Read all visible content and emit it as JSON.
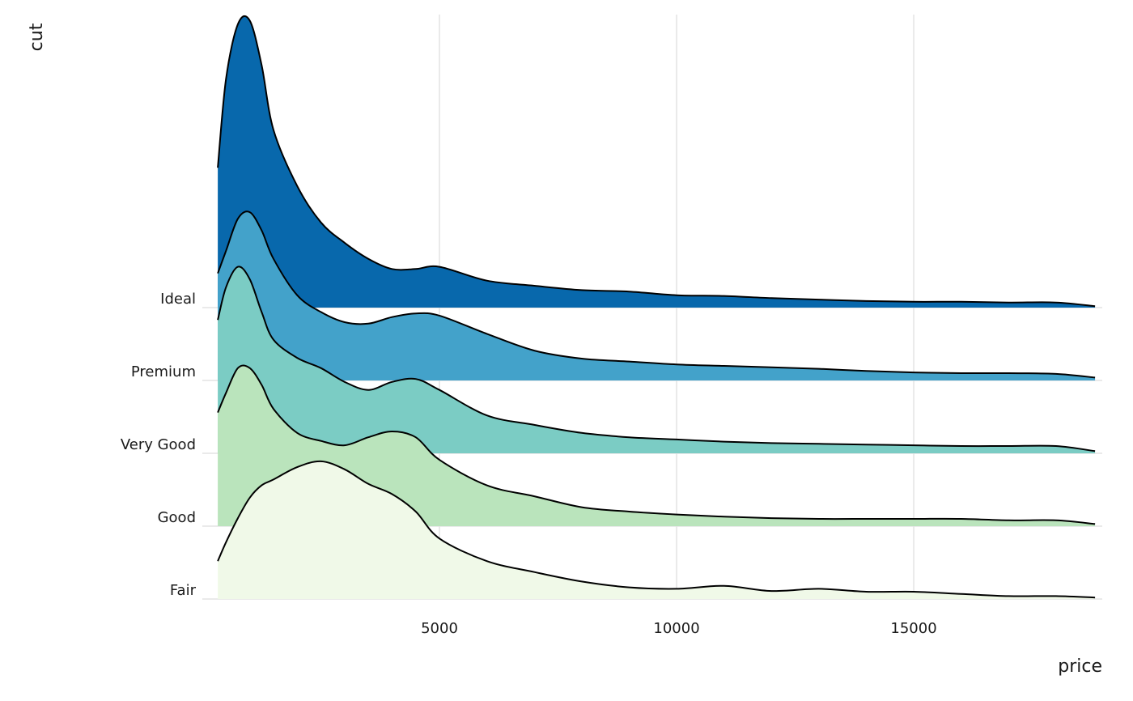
{
  "chart_data": {
    "type": "ridgeline",
    "x_label": "price",
    "y_label": "cut",
    "x": [
      326,
      500,
      750,
      1000,
      1250,
      1500,
      2000,
      2500,
      3000,
      3500,
      4000,
      4500,
      5000,
      6000,
      7000,
      8000,
      9000,
      10000,
      11000,
      12000,
      13000,
      14000,
      15000,
      16000,
      17000,
      18000,
      18823
    ],
    "series": [
      {
        "name": "Fair",
        "color": "#f0f9e8",
        "values": [
          0.52,
          0.78,
          1.11,
          1.39,
          1.56,
          1.64,
          1.81,
          1.89,
          1.78,
          1.58,
          1.44,
          1.2,
          0.83,
          0.52,
          0.37,
          0.24,
          0.16,
          0.14,
          0.18,
          0.11,
          0.14,
          0.1,
          0.1,
          0.07,
          0.04,
          0.04,
          0.02
        ]
      },
      {
        "name": "Good",
        "color": "#bae4bc",
        "values": [
          1.56,
          1.83,
          2.17,
          2.17,
          1.94,
          1.61,
          1.28,
          1.17,
          1.11,
          1.22,
          1.3,
          1.22,
          0.91,
          0.56,
          0.41,
          0.26,
          0.2,
          0.16,
          0.13,
          0.11,
          0.1,
          0.1,
          0.1,
          0.1,
          0.08,
          0.08,
          0.03
        ]
      },
      {
        "name": "Very Good",
        "color": "#7bccc4",
        "values": [
          1.83,
          2.28,
          2.56,
          2.39,
          1.94,
          1.56,
          1.31,
          1.17,
          0.98,
          0.87,
          0.98,
          1.02,
          0.87,
          0.52,
          0.39,
          0.28,
          0.22,
          0.19,
          0.16,
          0.14,
          0.13,
          0.12,
          0.11,
          0.1,
          0.1,
          0.1,
          0.03
        ]
      },
      {
        "name": "Premium",
        "color": "#43a2ca",
        "values": [
          1.47,
          1.78,
          2.22,
          2.31,
          2.06,
          1.67,
          1.17,
          0.94,
          0.8,
          0.78,
          0.87,
          0.92,
          0.89,
          0.64,
          0.41,
          0.3,
          0.26,
          0.22,
          0.2,
          0.18,
          0.16,
          0.13,
          0.11,
          0.1,
          0.1,
          0.09,
          0.04
        ]
      },
      {
        "name": "Ideal",
        "color": "#0868ac",
        "values": [
          1.92,
          3.14,
          3.89,
          3.94,
          3.33,
          2.44,
          1.67,
          1.17,
          0.89,
          0.67,
          0.53,
          0.53,
          0.56,
          0.37,
          0.3,
          0.24,
          0.22,
          0.17,
          0.16,
          0.13,
          0.11,
          0.09,
          0.08,
          0.08,
          0.07,
          0.07,
          0.02
        ]
      }
    ],
    "xlim": [
      0,
      18975
    ],
    "xticks": [
      5000,
      10000,
      15000
    ],
    "grid": true
  }
}
